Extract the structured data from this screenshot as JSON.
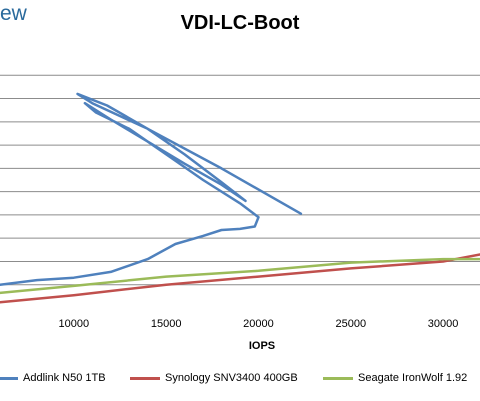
{
  "brand": "ew",
  "chart_data": {
    "type": "line",
    "title": "VDI-LC-Boot",
    "xlabel": "IOPS",
    "ylabel": "",
    "xlim": [
      6000,
      32000
    ],
    "ylim": [
      0,
      11
    ],
    "grid": true,
    "x_ticks": [
      "10000",
      "15000",
      "20000",
      "25000",
      "30000"
    ],
    "legend_position": "bottom",
    "series": [
      {
        "name": "Addlink N50 1TB",
        "color": "#4f81bd",
        "points": [
          [
            6000,
            1.0
          ],
          [
            8000,
            1.2
          ],
          [
            10000,
            1.3
          ],
          [
            12000,
            1.55
          ],
          [
            14000,
            2.1
          ],
          [
            15500,
            2.75
          ],
          [
            17000,
            3.1
          ],
          [
            18000,
            3.35
          ],
          [
            19000,
            3.4
          ],
          [
            19800,
            3.5
          ],
          [
            20000,
            3.9
          ],
          [
            19000,
            4.5
          ],
          [
            17000,
            5.5
          ],
          [
            15000,
            6.6
          ],
          [
            13000,
            7.7
          ],
          [
            11200,
            8.4
          ],
          [
            10600,
            8.8
          ],
          [
            12000,
            8.1
          ],
          [
            14000,
            7.15
          ],
          [
            16000,
            6.2
          ],
          [
            18000,
            5.3
          ],
          [
            19300,
            4.6
          ],
          [
            18000,
            5.4
          ],
          [
            16000,
            6.6
          ],
          [
            14000,
            7.7
          ],
          [
            11800,
            8.7
          ],
          [
            10200,
            9.2
          ],
          [
            11000,
            8.8
          ],
          [
            14000,
            7.7
          ],
          [
            18000,
            6.0
          ],
          [
            22300,
            4.05
          ]
        ]
      },
      {
        "name": "Synology SNV3400 400GB",
        "color": "#c0504d",
        "points": [
          [
            6000,
            0.25
          ],
          [
            10000,
            0.55
          ],
          [
            15000,
            1.0
          ],
          [
            20000,
            1.35
          ],
          [
            25000,
            1.7
          ],
          [
            30000,
            2.0
          ],
          [
            32000,
            2.3
          ]
        ]
      },
      {
        "name": "Seagate IronWolf 1.92",
        "color": "#9bbb59",
        "points": [
          [
            6000,
            0.65
          ],
          [
            10000,
            0.95
          ],
          [
            15000,
            1.35
          ],
          [
            20000,
            1.6
          ],
          [
            25000,
            1.95
          ],
          [
            30000,
            2.1
          ],
          [
            32000,
            2.1
          ]
        ]
      }
    ]
  }
}
